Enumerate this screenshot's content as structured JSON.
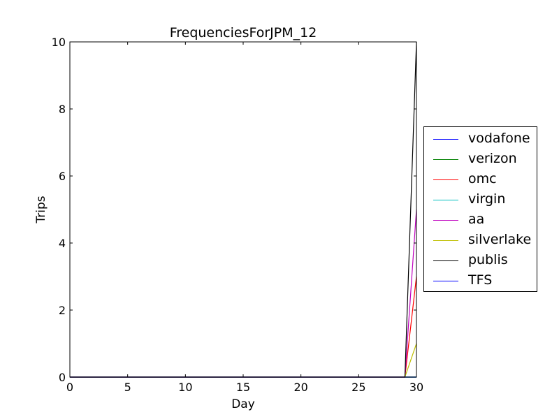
{
  "chart_data": {
    "type": "line",
    "title": "FrequenciesForJPM_12",
    "xlabel": "Day",
    "ylabel": "Trips",
    "xlim": [
      0,
      30
    ],
    "ylim": [
      0,
      10
    ],
    "xticks": [
      "0",
      "5",
      "10",
      "15",
      "20",
      "25",
      "30"
    ],
    "yticks": [
      "0",
      "2",
      "4",
      "6",
      "8",
      "10"
    ],
    "grid": false,
    "legend_position": "right-outside",
    "series": [
      {
        "name": "vodafone",
        "color": "#0000ff",
        "x": [
          0,
          29,
          30
        ],
        "y": [
          0,
          0,
          0
        ]
      },
      {
        "name": "verizon",
        "color": "#008000",
        "x": [
          0,
          29,
          30
        ],
        "y": [
          0,
          0,
          0
        ]
      },
      {
        "name": "omc",
        "color": "#ff0000",
        "x": [
          0,
          29,
          30
        ],
        "y": [
          0,
          0,
          3
        ]
      },
      {
        "name": "virgin",
        "color": "#00bfbf",
        "x": [
          0,
          29,
          30
        ],
        "y": [
          0,
          0,
          0
        ]
      },
      {
        "name": "aa",
        "color": "#bf00bf",
        "x": [
          0,
          29,
          30
        ],
        "y": [
          0,
          0,
          5
        ]
      },
      {
        "name": "silverlake",
        "color": "#bfbf00",
        "x": [
          0,
          29,
          30
        ],
        "y": [
          0,
          0,
          1
        ]
      },
      {
        "name": "publis",
        "color": "#000000",
        "x": [
          0,
          29,
          30
        ],
        "y": [
          0,
          0,
          10
        ]
      },
      {
        "name": "TFS",
        "color": "#0000ff",
        "x": [
          0,
          29,
          30
        ],
        "y": [
          0,
          0,
          0
        ]
      }
    ]
  }
}
